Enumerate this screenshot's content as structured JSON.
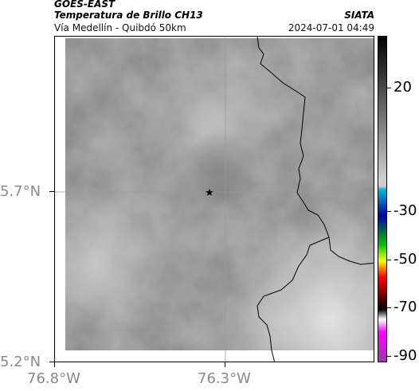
{
  "header": {
    "satellite": "GOES-EAST",
    "product": "Temperatura de Brillo CH13",
    "organization": "SIATA",
    "route": "Vía Medellín - Quibdó 50km",
    "timestamp": "2024-07-01 04:49"
  },
  "map": {
    "lat_axis_labels": [
      "5.7°N",
      "5.2°N"
    ],
    "lon_axis_labels": [
      "76.8°W",
      "76.3°W"
    ],
    "marker": "star-marker",
    "grid_lines": true,
    "coastline_color": "#000000"
  },
  "colorbar": {
    "tick_labels": [
      "20",
      "-30",
      "-50",
      "-70",
      "-90"
    ],
    "colors": [
      "#000000",
      "#cfcfcf",
      "#00bcd4",
      "#0000a0",
      "#00c000",
      "#ffff00",
      "#ff0000",
      "#000000",
      "#ffffff",
      "#ff00ff",
      "#9040a0"
    ]
  }
}
